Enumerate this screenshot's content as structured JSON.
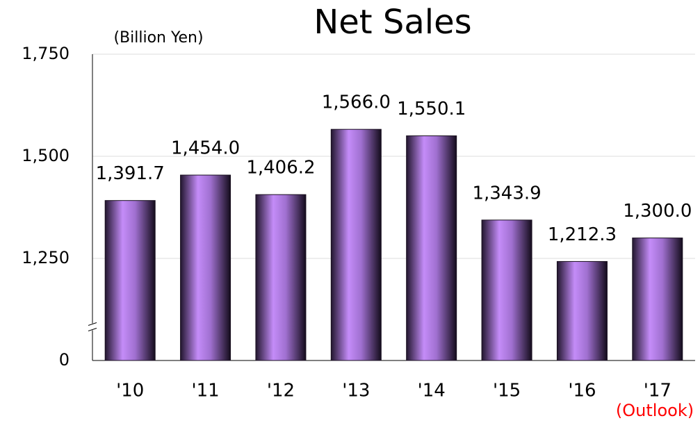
{
  "chart_data": {
    "type": "bar",
    "title": "Net Sales",
    "y_label": "(Billion Yen)",
    "categories": [
      "'10",
      "'11",
      "'12",
      "'13",
      "'14",
      "'15",
      "'16",
      "'17"
    ],
    "values": [
      1391.7,
      1454.0,
      1406.2,
      1566.0,
      1550.1,
      1343.9,
      1212.3,
      1300.0
    ],
    "value_labels": [
      "1,391.7",
      "1,454.0",
      "1,406.2",
      "1,566.0",
      "1,550.1",
      "1,343.9",
      "1,212.3",
      "1,300.0"
    ],
    "annotation": "(Outlook)",
    "annotation_color": "#ff0000",
    "color": "#c48cf8",
    "ylim": [
      0,
      1750
    ],
    "yticks": [
      0,
      {
        "value": 1250,
        "label": "1,250"
      },
      {
        "value": 1500,
        "label": "1,500"
      },
      {
        "value": 1750,
        "label": "1,750"
      }
    ],
    "axis_break": true,
    "grid": true
  }
}
